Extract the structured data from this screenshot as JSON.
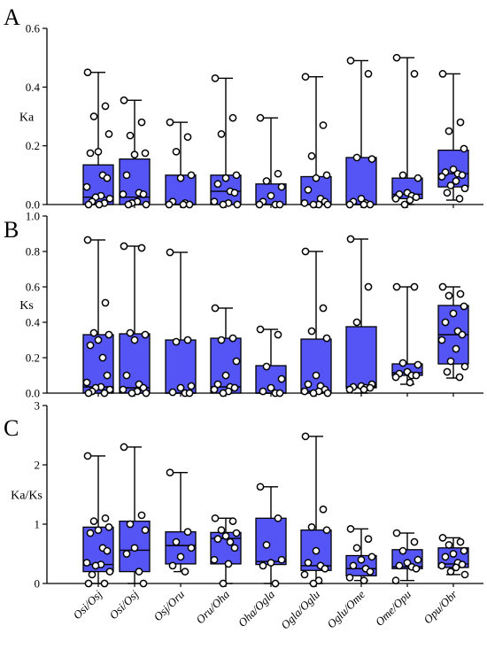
{
  "colors": {
    "box_fill": "#5555f5",
    "box_stroke": "#000000",
    "point_fill": "#ffffff",
    "axis": "#000000"
  },
  "chart_data": [
    {
      "type": "box",
      "panel_label": "A",
      "ylabel": "Ka",
      "ylim": [
        0,
        0.6
      ],
      "yticks": [
        0.0,
        0.2,
        0.4,
        0.6
      ],
      "ytick_labels": [
        "0.0",
        "0.2",
        "0.4",
        "0.6"
      ],
      "categories": [
        "Osi/Osj",
        "Osi/Osj",
        "Osj/Oru",
        "Oru/Oha",
        "Oha/Ogla",
        "Ogla/Oglu",
        "Oglu/Ome",
        "Ome/Opu",
        "Opu/Obr"
      ],
      "boxes": [
        {
          "min": 0.0,
          "q1": 0.0,
          "median": 0.025,
          "q3": 0.135,
          "max": 0.45
        },
        {
          "min": 0.0,
          "q1": 0.0,
          "median": 0.025,
          "q3": 0.155,
          "max": 0.355
        },
        {
          "min": 0.0,
          "q1": 0.0,
          "median": 0.0,
          "q3": 0.1,
          "max": 0.28
        },
        {
          "min": 0.0,
          "q1": 0.0,
          "median": 0.045,
          "q3": 0.1,
          "max": 0.43
        },
        {
          "min": 0.0,
          "q1": 0.0,
          "median": 0.0,
          "q3": 0.07,
          "max": 0.295
        },
        {
          "min": 0.0,
          "q1": 0.0,
          "median": 0.0,
          "q3": 0.095,
          "max": 0.435
        },
        {
          "min": 0.0,
          "q1": 0.0,
          "median": 0.0,
          "q3": 0.16,
          "max": 0.49
        },
        {
          "min": 0.0,
          "q1": 0.02,
          "median": 0.035,
          "q3": 0.09,
          "max": 0.5
        },
        {
          "min": 0.015,
          "q1": 0.06,
          "median": 0.105,
          "q3": 0.185,
          "max": 0.445
        }
      ],
      "points": [
        [
          0.45,
          0.335,
          0.3,
          0.24,
          0.18,
          0.175,
          0.1,
          0.09,
          0.06,
          0.03,
          0.025,
          0.02,
          0.01,
          0.005,
          0.0,
          0.0
        ],
        [
          0.355,
          0.28,
          0.235,
          0.175,
          0.17,
          0.1,
          0.04,
          0.035,
          0.035,
          0.01,
          0.005,
          0.0,
          0.0
        ],
        [
          0.28,
          0.23,
          0.18,
          0.1,
          0.09,
          0.01,
          0.005,
          0.0,
          0.0,
          0.0
        ],
        [
          0.43,
          0.295,
          0.24,
          0.1,
          0.09,
          0.07,
          0.045,
          0.04,
          0.01,
          0.005,
          0.0,
          0.0
        ],
        [
          0.295,
          0.105,
          0.08,
          0.06,
          0.03,
          0.01,
          0.0,
          0.0,
          0.0
        ],
        [
          0.435,
          0.27,
          0.165,
          0.1,
          0.09,
          0.05,
          0.02,
          0.01,
          0.005,
          0.0,
          0.0,
          0.0
        ],
        [
          0.49,
          0.445,
          0.16,
          0.155,
          0.02,
          0.01,
          0.005,
          0.0,
          0.0,
          0.0
        ],
        [
          0.5,
          0.445,
          0.1,
          0.09,
          0.04,
          0.035,
          0.03,
          0.025,
          0.02,
          0.015,
          0.0
        ],
        [
          0.445,
          0.28,
          0.25,
          0.19,
          0.12,
          0.11,
          0.105,
          0.1,
          0.095,
          0.08,
          0.065,
          0.055,
          0.04,
          0.02
        ]
      ]
    },
    {
      "type": "box",
      "panel_label": "B",
      "ylabel": "Ks",
      "ylim": [
        0,
        1.0
      ],
      "yticks": [
        0.0,
        0.2,
        0.4,
        0.6,
        0.8,
        1.0
      ],
      "ytick_labels": [
        "0.0",
        "0.2",
        "0.4",
        "0.6",
        "0.8",
        "1.0"
      ],
      "categories": [
        "Osi/Osj",
        "Osi/Osj",
        "Osj/Oru",
        "Oru/Oha",
        "Oha/Ogla",
        "Ogla/Oglu",
        "Oglu/Ome",
        "Ome/Opu",
        "Opu/Obr"
      ],
      "boxes": [
        {
          "min": 0.0,
          "q1": 0.0,
          "median": 0.035,
          "q3": 0.33,
          "max": 0.865
        },
        {
          "min": 0.0,
          "q1": 0.0,
          "median": 0.03,
          "q3": 0.335,
          "max": 0.83
        },
        {
          "min": 0.0,
          "q1": 0.0,
          "median": 0.0,
          "q3": 0.3,
          "max": 0.795
        },
        {
          "min": 0.0,
          "q1": 0.0,
          "median": 0.035,
          "q3": 0.31,
          "max": 0.48
        },
        {
          "min": 0.0,
          "q1": 0.0,
          "median": 0.0,
          "q3": 0.155,
          "max": 0.36
        },
        {
          "min": 0.0,
          "q1": 0.0,
          "median": 0.01,
          "q3": 0.305,
          "max": 0.8
        },
        {
          "min": 0.0,
          "q1": 0.03,
          "median": 0.035,
          "q3": 0.375,
          "max": 0.87
        },
        {
          "min": 0.05,
          "q1": 0.1,
          "median": 0.115,
          "q3": 0.165,
          "max": 0.6
        },
        {
          "min": 0.085,
          "q1": 0.165,
          "median": 0.33,
          "q3": 0.495,
          "max": 0.6
        }
      ],
      "points": [
        [
          0.865,
          0.51,
          0.34,
          0.33,
          0.3,
          0.27,
          0.2,
          0.1,
          0.06,
          0.035,
          0.03,
          0.02,
          0.01,
          0.0,
          0.0
        ],
        [
          0.83,
          0.82,
          0.34,
          0.33,
          0.3,
          0.1,
          0.05,
          0.03,
          0.02,
          0.01,
          0.0,
          0.0
        ],
        [
          0.795,
          0.3,
          0.29,
          0.04,
          0.03,
          0.005,
          0.0,
          0.0
        ],
        [
          0.48,
          0.31,
          0.3,
          0.18,
          0.1,
          0.05,
          0.035,
          0.03,
          0.02,
          0.01,
          0.0
        ],
        [
          0.36,
          0.33,
          0.15,
          0.08,
          0.03,
          0.01,
          0.0,
          0.0
        ],
        [
          0.8,
          0.48,
          0.35,
          0.31,
          0.1,
          0.05,
          0.04,
          0.02,
          0.01,
          0.01,
          0.0,
          0.0
        ],
        [
          0.87,
          0.6,
          0.4,
          0.05,
          0.04,
          0.035,
          0.03,
          0.03,
          0.02,
          0.02
        ],
        [
          0.6,
          0.6,
          0.17,
          0.16,
          0.12,
          0.11,
          0.1,
          0.1,
          0.09,
          0.06
        ],
        [
          0.6,
          0.56,
          0.55,
          0.49,
          0.45,
          0.4,
          0.35,
          0.33,
          0.3,
          0.25,
          0.18,
          0.15,
          0.12,
          0.09
        ]
      ]
    },
    {
      "type": "box",
      "panel_label": "C",
      "ylabel": "Ka/Ks",
      "ylim": [
        0,
        3
      ],
      "yticks": [
        0,
        1,
        2,
        3
      ],
      "ytick_labels": [
        "0",
        "1",
        "2",
        "3"
      ],
      "categories": [
        "Osi/Osj",
        "Osi/Osj",
        "Osj/Oru",
        "Oru/Oha",
        "Oha/Ogla",
        "Ogla/Oglu",
        "Oglu/Ome",
        "Ome/Opu",
        "Opu/Obr"
      ],
      "boxes": [
        {
          "min": 0.0,
          "q1": 0.2,
          "median": 0.32,
          "q3": 0.95,
          "max": 2.15
        },
        {
          "min": 0.0,
          "q1": 0.2,
          "median": 0.56,
          "q3": 1.05,
          "max": 2.3
        },
        {
          "min": 0.2,
          "q1": 0.33,
          "median": 0.64,
          "q3": 0.87,
          "max": 1.87
        },
        {
          "min": 0.0,
          "q1": 0.33,
          "median": 0.76,
          "q3": 0.86,
          "max": 1.1
        },
        {
          "min": 0.0,
          "q1": 0.32,
          "median": 0.37,
          "q3": 1.1,
          "max": 1.63
        },
        {
          "min": 0.0,
          "q1": 0.22,
          "median": 0.3,
          "q3": 0.9,
          "max": 2.48
        },
        {
          "min": 0.05,
          "q1": 0.13,
          "median": 0.25,
          "q3": 0.47,
          "max": 0.92
        },
        {
          "min": 0.05,
          "q1": 0.25,
          "median": 0.28,
          "q3": 0.57,
          "max": 0.85
        },
        {
          "min": 0.15,
          "q1": 0.27,
          "median": 0.33,
          "q3": 0.6,
          "max": 0.77
        }
      ],
      "points": [
        [
          2.15,
          1.1,
          1.05,
          0.95,
          0.9,
          0.85,
          0.6,
          0.55,
          0.35,
          0.32,
          0.3,
          0.2,
          0.15,
          0.0,
          0.0
        ],
        [
          2.3,
          1.15,
          1.0,
          0.9,
          0.6,
          0.5,
          0.2,
          0.0
        ],
        [
          1.87,
          0.87,
          0.7,
          0.6,
          0.45,
          0.3,
          0.2
        ],
        [
          1.1,
          1.05,
          0.9,
          0.85,
          0.8,
          0.75,
          0.7,
          0.6,
          0.4,
          0.33,
          0.0
        ],
        [
          1.63,
          1.1,
          0.65,
          0.4,
          0.35,
          0.3,
          0.0
        ],
        [
          2.48,
          1.25,
          0.95,
          0.9,
          0.55,
          0.35,
          0.3,
          0.25,
          0.15,
          0.05,
          0.0
        ],
        [
          0.92,
          0.75,
          0.6,
          0.45,
          0.4,
          0.3,
          0.25,
          0.2,
          0.1,
          0.05
        ],
        [
          0.85,
          0.7,
          0.55,
          0.4,
          0.35,
          0.3,
          0.28,
          0.25,
          0.05
        ],
        [
          0.77,
          0.7,
          0.65,
          0.55,
          0.5,
          0.45,
          0.35,
          0.32,
          0.3,
          0.27,
          0.2,
          0.15
        ]
      ]
    }
  ]
}
